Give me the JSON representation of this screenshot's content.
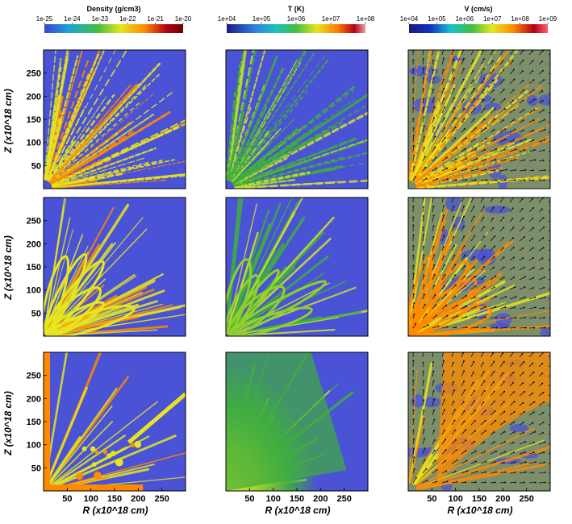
{
  "colorbars": [
    {
      "title": "Density (g/cm3)",
      "ticks": [
        "1e-25",
        "1e-24",
        "1e-23",
        "1e-22",
        "1e-21",
        "1e-20"
      ]
    },
    {
      "title": "T (K)",
      "ticks": [
        "1e+04",
        "1e+05",
        "1e+06",
        "1e+07",
        "1e+08"
      ]
    },
    {
      "title": "V (cm/s)",
      "ticks": [
        "1e+04",
        "1e+05",
        "1e+06",
        "1e+07",
        "1e+08",
        "1e+09"
      ]
    }
  ],
  "axes": {
    "ylabel": "Z (x10^18 cm)",
    "xlabel": "R (x10^18 cm)",
    "yticks": [
      "250",
      "200",
      "150",
      "100",
      "50"
    ],
    "xticks": [
      "50",
      "100",
      "150",
      "200",
      "250"
    ]
  },
  "colors": {
    "background_blue": "#4a52d6",
    "velocity_field": "#7d8f6a",
    "colormap": [
      "#3c46d2",
      "#1fa3d8",
      "#3fbf3f",
      "#e6e61e",
      "#ff8a00",
      "#b3001a",
      "#6b0000"
    ]
  },
  "chart_data": {
    "type": "heatmap",
    "layout": "3x3 panel grid",
    "rows": 3,
    "columns": [
      "Density (g/cm3)",
      "T (K)",
      "V (cm/s)"
    ],
    "colorbar_scales": {
      "density": {
        "min": 1e-25,
        "max": 1e-20,
        "scale": "log"
      },
      "temperature": {
        "min": 10000.0,
        "max": 100000000.0,
        "scale": "log"
      },
      "velocity": {
        "min": 10000.0,
        "max": 1000000000.0,
        "scale": "log"
      }
    },
    "ylabel": "Z (x10^18 cm)",
    "xlabel": "R (x10^18 cm)",
    "xlim": [
      0,
      300
    ],
    "ylim": [
      0,
      300
    ],
    "velocity_panels_show_vector_arrows": true
  }
}
